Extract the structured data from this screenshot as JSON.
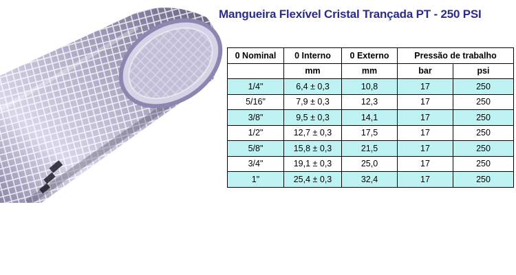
{
  "title": "Mangueira Flexível Cristal Trançada PT - 250 PSI",
  "table": {
    "header1": [
      "0 Nominal",
      "0 Interno",
      "0 Externo",
      "Pressão de trabalho"
    ],
    "header2": [
      "",
      "mm",
      "mm",
      "bar",
      "psi"
    ],
    "rows": [
      [
        "1/4\"",
        "6,4 ± 0,3",
        "10,8",
        "17",
        "250"
      ],
      [
        "5/16\"",
        "7,9 ± 0,3",
        "12,3",
        "17",
        "250"
      ],
      [
        "3/8\"",
        "9,5 ± 0,3",
        "14,1",
        "17",
        "250"
      ],
      [
        "1/2\"",
        "12,7 ± 0,3",
        "17,5",
        "17",
        "250"
      ],
      [
        "5/8\"",
        "15,8 ± 0,3",
        "21,5",
        "17",
        "250"
      ],
      [
        "3/4\"",
        "19,1 ± 0,3",
        "25,0",
        "17",
        "250"
      ],
      [
        "1\"",
        "25,4 ± 0,3",
        "32,4",
        "17",
        "250"
      ]
    ]
  },
  "colors": {
    "title": "#2b2b8f",
    "row_highlight": "#bff3f3"
  }
}
